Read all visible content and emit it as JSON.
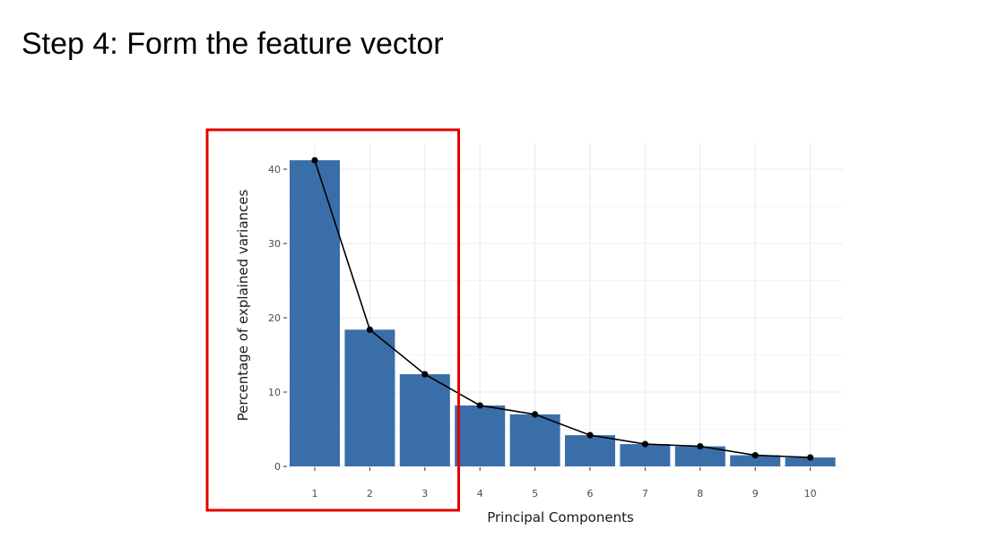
{
  "slide": {
    "title": "Step 4: Form the feature vector"
  },
  "chart_data": {
    "type": "bar",
    "title": "",
    "xlabel": "Principal Components",
    "ylabel": "Percentage of explained variances",
    "categories": [
      "1",
      "2",
      "3",
      "4",
      "5",
      "6",
      "7",
      "8",
      "9",
      "10"
    ],
    "values": [
      41.2,
      18.4,
      12.4,
      8.2,
      7.0,
      4.2,
      3.0,
      2.7,
      1.5,
      1.2
    ],
    "overlay_line": true,
    "ylim": [
      0,
      42
    ],
    "yticks": [
      0,
      10,
      20,
      30,
      40
    ],
    "grid": true,
    "bar_color": "#3A6EA8",
    "line_color": "#000000",
    "highlight": {
      "categories": [
        "1",
        "2",
        "3"
      ],
      "color": "#E00000"
    }
  }
}
